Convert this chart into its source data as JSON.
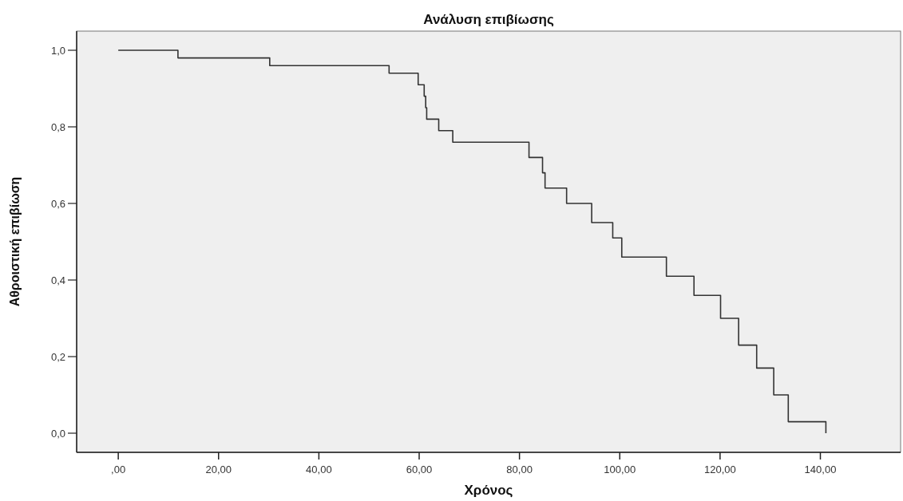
{
  "chart_data": {
    "type": "step",
    "title": "Ανάλυση επιβίωσης",
    "xlabel": "Χρόνος",
    "ylabel": "Αθροιστική επιβίωση",
    "x": [
      0,
      11.9,
      30.2,
      54.0,
      59.8,
      61.0,
      61.3,
      61.5,
      63.9,
      66.7,
      81.9,
      84.6,
      85.1,
      89.4,
      94.4,
      98.6,
      100.4,
      109.3,
      114.8,
      120.1,
      123.7,
      127.3,
      130.7,
      133.6,
      141.1
    ],
    "series": [
      {
        "color": "#333333",
        "values": [
          1.0,
          0.98,
          0.96,
          0.94,
          0.91,
          0.88,
          0.85,
          0.82,
          0.79,
          0.76,
          0.72,
          0.68,
          0.64,
          0.6,
          0.55,
          0.51,
          0.46,
          0.41,
          0.36,
          0.3,
          0.23,
          0.17,
          0.1,
          0.03,
          0.0
        ]
      }
    ],
    "xlim": [
      -8.3,
      156
    ],
    "ylim": [
      -0.05,
      1.05
    ],
    "xticks": [
      {
        "value": 0,
        "label": ",00"
      },
      {
        "value": 20,
        "label": "20,00"
      },
      {
        "value": 40,
        "label": "40,00"
      },
      {
        "value": 60,
        "label": "60,00"
      },
      {
        "value": 80,
        "label": "80,00"
      },
      {
        "value": 100,
        "label": "100,00"
      },
      {
        "value": 120,
        "label": "120,00"
      },
      {
        "value": 140,
        "label": "140,00"
      }
    ],
    "yticks": [
      {
        "value": 0,
        "label": "0,0"
      },
      {
        "value": 0.2,
        "label": "0,2"
      },
      {
        "value": 0.4,
        "label": "0,4"
      },
      {
        "value": 0.6,
        "label": "0,6"
      },
      {
        "value": 0.8,
        "label": "0,8"
      },
      {
        "value": 1.0,
        "label": "1,0"
      }
    ],
    "grid": false
  }
}
